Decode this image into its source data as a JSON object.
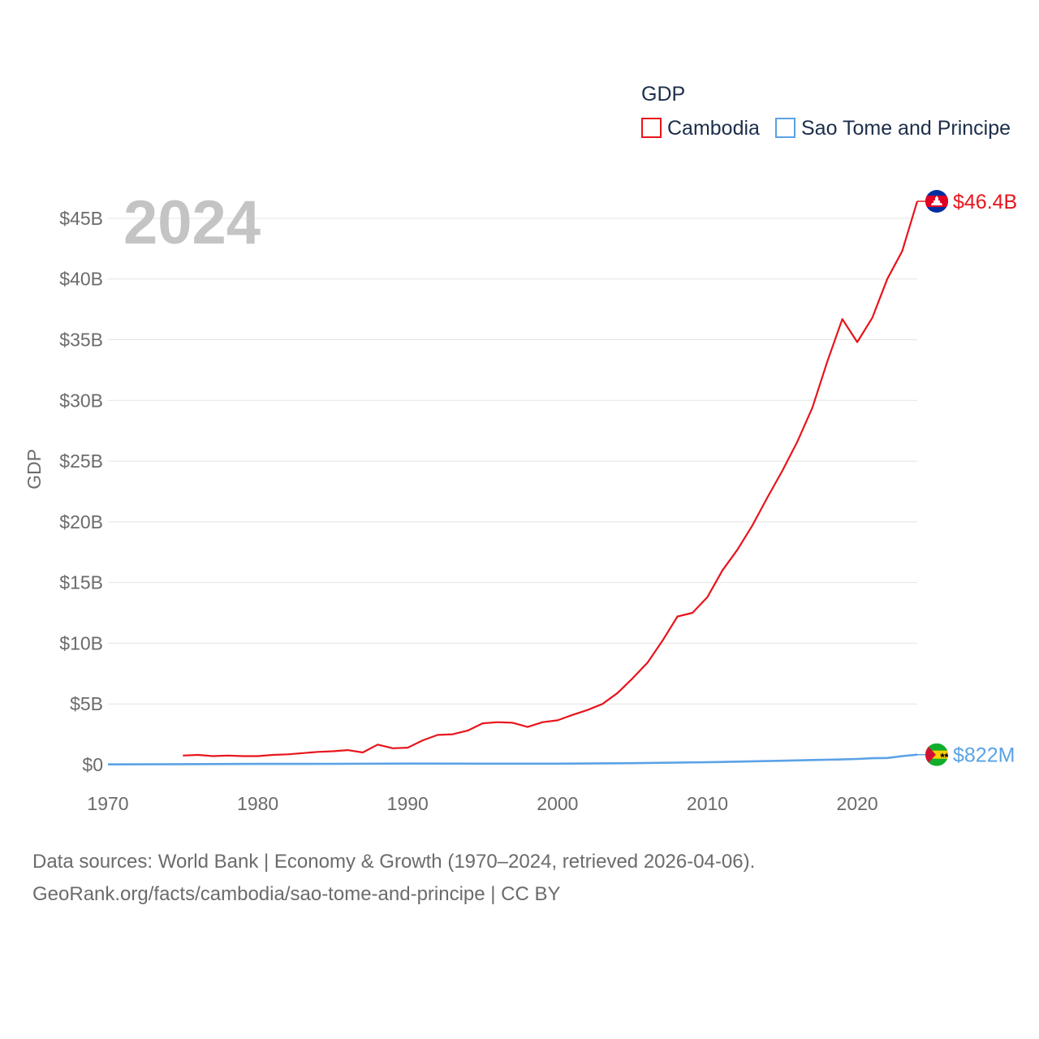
{
  "chart_data": {
    "type": "line",
    "title": "GDP",
    "current_year": "2024",
    "ylabel": "GDP",
    "xlabel": "",
    "xlim": [
      1970,
      2024
    ],
    "ylim": [
      0,
      46.4
    ],
    "unit": "USD billions",
    "x_ticks": [
      1970,
      1980,
      1990,
      2000,
      2010,
      2020
    ],
    "x_tick_labels": [
      "1970",
      "1980",
      "1990",
      "2000",
      "2010",
      "2020"
    ],
    "y_ticks": [
      0,
      5,
      10,
      15,
      20,
      25,
      30,
      35,
      40,
      45
    ],
    "y_tick_labels": [
      "$0",
      "$5B",
      "$10B",
      "$15B",
      "$20B",
      "$25B",
      "$30B",
      "$35B",
      "$40B",
      "$45B"
    ],
    "grid": true,
    "legend_position": "top-right",
    "series": [
      {
        "name": "Cambodia",
        "color": "#e8141c",
        "end_label": "$46.4B",
        "x": [
          1975,
          1976,
          1977,
          1978,
          1979,
          1980,
          1981,
          1982,
          1983,
          1984,
          1985,
          1986,
          1987,
          1988,
          1989,
          1990,
          1991,
          1992,
          1993,
          1994,
          1995,
          1996,
          1997,
          1998,
          1999,
          2000,
          2001,
          2002,
          2003,
          2004,
          2005,
          2006,
          2007,
          2008,
          2009,
          2010,
          2011,
          2012,
          2013,
          2014,
          2015,
          2016,
          2017,
          2018,
          2019,
          2020,
          2021,
          2022,
          2023,
          2024
        ],
        "values": [
          0.75,
          0.8,
          0.7,
          0.75,
          0.7,
          0.7,
          0.8,
          0.85,
          0.95,
          1.05,
          1.1,
          1.2,
          1.0,
          1.65,
          1.35,
          1.4,
          2.0,
          2.45,
          2.5,
          2.8,
          3.4,
          3.5,
          3.45,
          3.1,
          3.5,
          3.65,
          4.1,
          4.5,
          5.0,
          5.9,
          7.1,
          8.4,
          10.2,
          12.2,
          12.5,
          13.8,
          16.0,
          17.7,
          19.7,
          22.0,
          24.2,
          26.6,
          29.4,
          33.2,
          36.7,
          34.8,
          36.8,
          40.0,
          42.3,
          46.4
        ]
      },
      {
        "name": "Sao Tome and Principe",
        "color": "#5ba2e6",
        "end_label": "$822M",
        "x": [
          1970,
          1975,
          1980,
          1985,
          1990,
          1995,
          2000,
          2005,
          2010,
          2015,
          2017,
          2019,
          2020,
          2021,
          2022,
          2023,
          2024
        ],
        "values": [
          0.02,
          0.04,
          0.06,
          0.07,
          0.09,
          0.08,
          0.08,
          0.12,
          0.2,
          0.32,
          0.38,
          0.43,
          0.47,
          0.53,
          0.55,
          0.7,
          0.822
        ]
      }
    ],
    "icons": [
      "cambodia-flag-icon",
      "sao-tome-flag-icon"
    ]
  },
  "footer": {
    "line1": "Data sources: World Bank | Economy & Growth (1970–2024, retrieved 2026-04-06).",
    "line2": "GeoRank.org/facts/cambodia/sao-tome-and-principe | CC BY"
  }
}
